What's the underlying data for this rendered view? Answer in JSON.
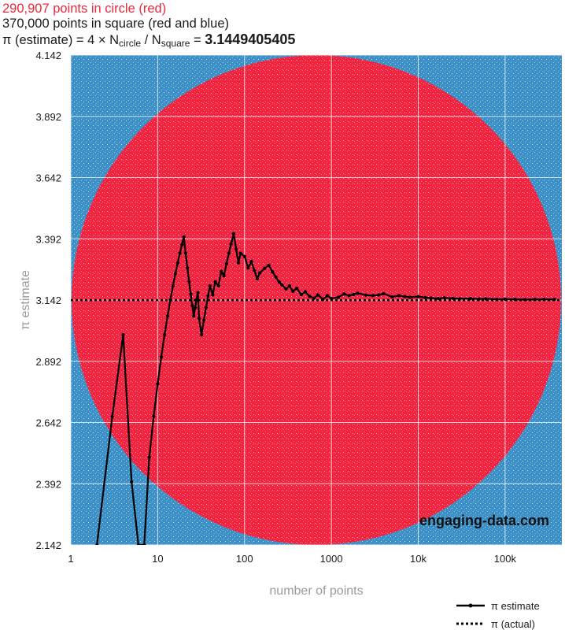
{
  "header": {
    "line1": "290,907 points in circle (red)",
    "line2": "370,000 points in square (red and blue)",
    "line3_prefix": "π (estimate) = 4 × N",
    "line3_sub1": "circle",
    "line3_mid": " / N",
    "line3_sub2": "square",
    "line3_eq": " = ",
    "line3_value": "3.1449405405"
  },
  "colors": {
    "circle_red": "#f2213e",
    "square_blue": "#3b8fc7",
    "estimate_line": "#000000",
    "actual_line": "#000000"
  },
  "watermark": "engaging-data.com",
  "chart_data": {
    "type": "line",
    "xlabel": "number of points",
    "ylabel": "π estimate",
    "x_scale": "log",
    "xlim": [
      1,
      450000
    ],
    "ylim": [
      2.142,
      4.142
    ],
    "x_ticks": [
      1,
      10,
      100,
      1000,
      10000,
      100000
    ],
    "x_tick_labels": [
      "1",
      "10",
      "100",
      "1000",
      "10k",
      "100k"
    ],
    "y_ticks": [
      2.142,
      2.392,
      2.642,
      2.892,
      3.142,
      3.392,
      3.642,
      3.892,
      4.142
    ],
    "y_tick_labels": [
      "2.142",
      "2.392",
      "2.642",
      "2.892",
      "3.142",
      "3.392",
      "3.642",
      "3.892",
      "4.142"
    ],
    "grid": true,
    "legend": "bottom-right",
    "series": [
      {
        "name": "π estimate",
        "style": "solid-with-points",
        "x": [
          2,
          3,
          4,
          5,
          6,
          7,
          8,
          9,
          10,
          11,
          12,
          13,
          14,
          15,
          16,
          17,
          18,
          19,
          20,
          21,
          22,
          23,
          24,
          25,
          26,
          27,
          28,
          29,
          30,
          32,
          34,
          36,
          38,
          40,
          43,
          46,
          50,
          54,
          58,
          62,
          66,
          70,
          75,
          80,
          85,
          90,
          100,
          110,
          120,
          130,
          140,
          150,
          170,
          190,
          210,
          230,
          250,
          270,
          300,
          330,
          360,
          400,
          450,
          500,
          560,
          630,
          700,
          800,
          900,
          1000,
          1200,
          1400,
          1600,
          1800,
          2000,
          2500,
          3000,
          3500,
          4000,
          5000,
          6000,
          7000,
          8000,
          10000,
          12000,
          14000,
          17000,
          20000,
          25000,
          30000,
          40000,
          50000,
          60000,
          80000,
          100000,
          130000,
          170000,
          220000,
          280000,
          370000
        ],
        "y": [
          2.142,
          2.667,
          3.0,
          2.4,
          2.142,
          2.142,
          2.5,
          2.667,
          2.8,
          2.909,
          3.0,
          3.077,
          3.143,
          3.2,
          3.25,
          3.294,
          3.333,
          3.368,
          3.4,
          3.333,
          3.273,
          3.217,
          3.167,
          3.12,
          3.077,
          3.111,
          3.143,
          3.172,
          3.067,
          3.0,
          3.059,
          3.111,
          3.158,
          3.2,
          3.163,
          3.217,
          3.2,
          3.259,
          3.241,
          3.29,
          3.333,
          3.371,
          3.413,
          3.35,
          3.294,
          3.333,
          3.32,
          3.273,
          3.3,
          3.262,
          3.229,
          3.253,
          3.271,
          3.284,
          3.257,
          3.235,
          3.216,
          3.204,
          3.187,
          3.2,
          3.178,
          3.19,
          3.164,
          3.176,
          3.157,
          3.149,
          3.163,
          3.145,
          3.16,
          3.148,
          3.153,
          3.167,
          3.16,
          3.165,
          3.17,
          3.162,
          3.16,
          3.163,
          3.168,
          3.155,
          3.16,
          3.156,
          3.153,
          3.156,
          3.152,
          3.15,
          3.148,
          3.151,
          3.149,
          3.147,
          3.148,
          3.146,
          3.147,
          3.145,
          3.146,
          3.145,
          3.144,
          3.145,
          3.145,
          3.145
        ]
      },
      {
        "name": "π (actual)",
        "style": "dotted",
        "value": 3.14159
      }
    ]
  }
}
